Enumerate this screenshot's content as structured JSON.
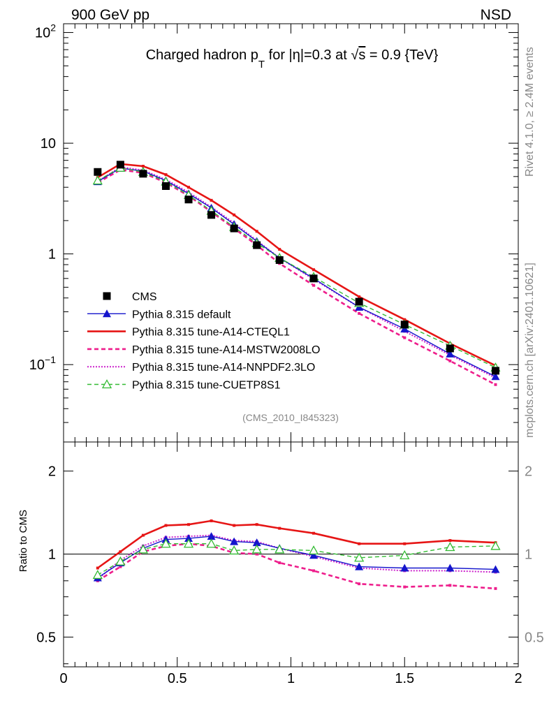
{
  "header": {
    "left": "900 GeV pp",
    "right": "NSD"
  },
  "side_labels": {
    "rivet": "Rivet 4.1.0, ≥ 2.4M events",
    "source": "mcplots.cern.ch [arXiv:2401.10621]"
  },
  "colors": {
    "cms": "#000000",
    "default": "#1515cc",
    "cteql1": "#e61515",
    "mstw": "#ee1e8c",
    "nnpdf": "#cc22cc",
    "cuetp8s1": "#33bb33",
    "frame": "#000000",
    "muted": "#888888"
  },
  "chart_data": [
    {
      "type": "line",
      "title_parts": {
        "main": "Charged hadron p",
        "sub": "T",
        "mid": " for |η|=0.3 at ",
        "sqrt": "√",
        "s": "s",
        "tail": " = 0.9 {TeV}"
      },
      "watermark": "(CMS_2010_I845323)",
      "yscale": "log",
      "ylim": [
        0.02,
        120
      ],
      "xlim": [
        0,
        2
      ],
      "yticks": [
        {
          "value": 0.1,
          "base": "10",
          "exp": "−1"
        },
        {
          "value": 1,
          "base": "1",
          "exp": ""
        },
        {
          "value": 10,
          "base": "10",
          "exp": ""
        },
        {
          "value": 100,
          "base": "10",
          "exp": "2"
        }
      ],
      "x": [
        0.15,
        0.25,
        0.35,
        0.45,
        0.55,
        0.65,
        0.75,
        0.85,
        0.95,
        1.1,
        1.3,
        1.5,
        1.7,
        1.9
      ],
      "series": [
        {
          "key": "cms",
          "name": "CMS",
          "style": "square",
          "values": [
            5.5,
            6.4,
            5.3,
            4.1,
            3.1,
            2.25,
            1.7,
            1.2,
            0.88,
            0.6,
            0.37,
            0.23,
            0.14,
            0.088
          ]
        },
        {
          "key": "default",
          "name": "Pythia 8.315 default",
          "style": "line-tri",
          "values": [
            4.5,
            5.95,
            5.6,
            4.6,
            3.5,
            2.6,
            1.85,
            1.3,
            0.92,
            0.6,
            0.33,
            0.21,
            0.125,
            0.078
          ]
        },
        {
          "key": "cteql1",
          "name": "Pythia 8.315 tune-A14-CTEQL1",
          "style": "solid-thick",
          "values": [
            4.9,
            6.5,
            6.2,
            5.2,
            4.0,
            3.05,
            2.25,
            1.6,
            1.1,
            0.72,
            0.41,
            0.255,
            0.155,
            0.098
          ]
        },
        {
          "key": "mstw",
          "name": "Pythia 8.315 tune-A14-MSTW2008LO",
          "style": "dashed-thick",
          "values": [
            4.4,
            5.75,
            5.4,
            4.4,
            3.35,
            2.4,
            1.7,
            1.2,
            0.82,
            0.52,
            0.29,
            0.175,
            0.108,
            0.066
          ]
        },
        {
          "key": "nnpdf",
          "name": "Pythia 8.315 tune-A14-NNPDF2.3LO",
          "style": "dotted",
          "values": [
            4.5,
            6.1,
            5.7,
            4.7,
            3.6,
            2.65,
            1.9,
            1.32,
            0.92,
            0.59,
            0.33,
            0.2,
            0.122,
            0.076
          ]
        },
        {
          "key": "cuetp8s1",
          "name": "Pythia 8.315 tune-CUETP8S1",
          "style": "dashed-open-tri",
          "values": [
            4.6,
            6.0,
            5.5,
            4.5,
            3.4,
            2.45,
            1.75,
            1.25,
            0.92,
            0.62,
            0.36,
            0.23,
            0.148,
            0.094
          ]
        }
      ]
    },
    {
      "type": "line",
      "ylabel": "Ratio to CMS",
      "yscale": "log",
      "ylim": [
        0.39,
        2.55
      ],
      "yticks": [
        0.5,
        1,
        2
      ],
      "ytick_labels": [
        "0.5",
        "1",
        "2"
      ],
      "xticks": [
        0,
        0.5,
        1,
        1.5,
        2
      ],
      "xtick_labels": [
        "0",
        "0.5",
        "1",
        "1.5",
        "2"
      ],
      "x": [
        0.15,
        0.25,
        0.35,
        0.45,
        0.55,
        0.65,
        0.75,
        0.85,
        0.95,
        1.1,
        1.3,
        1.5,
        1.7,
        1.9
      ],
      "series": [
        {
          "key": "default",
          "values": [
            0.82,
            0.93,
            1.05,
            1.13,
            1.14,
            1.16,
            1.11,
            1.1,
            1.05,
            0.99,
            0.9,
            0.89,
            0.89,
            0.88
          ]
        },
        {
          "key": "cteql1",
          "values": [
            0.89,
            1.02,
            1.17,
            1.27,
            1.28,
            1.32,
            1.27,
            1.28,
            1.24,
            1.19,
            1.09,
            1.09,
            1.12,
            1.1
          ]
        },
        {
          "key": "mstw",
          "values": [
            0.8,
            0.9,
            1.02,
            1.07,
            1.09,
            1.07,
            1.01,
            1.0,
            0.93,
            0.87,
            0.78,
            0.76,
            0.77,
            0.75
          ]
        },
        {
          "key": "nnpdf",
          "values": [
            0.81,
            0.95,
            1.07,
            1.15,
            1.16,
            1.17,
            1.12,
            1.11,
            1.05,
            0.98,
            0.89,
            0.87,
            0.87,
            0.86
          ]
        },
        {
          "key": "cuetp8s1",
          "values": [
            0.84,
            0.94,
            1.04,
            1.09,
            1.09,
            1.09,
            1.03,
            1.04,
            1.04,
            1.03,
            0.97,
            0.99,
            1.06,
            1.07
          ]
        }
      ]
    }
  ]
}
